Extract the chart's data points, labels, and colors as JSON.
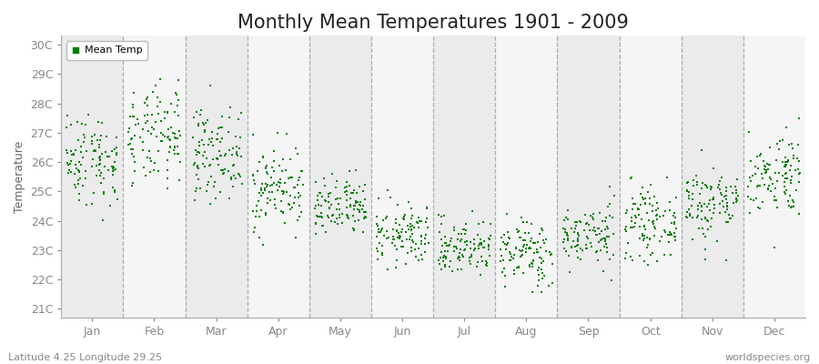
{
  "title": "Monthly Mean Temperatures 1901 - 2009",
  "ylabel": "Temperature",
  "xlabel_labels": [
    "Jan",
    "Feb",
    "Mar",
    "Apr",
    "May",
    "Jun",
    "Jul",
    "Aug",
    "Sep",
    "Oct",
    "Nov",
    "Dec"
  ],
  "ytick_labels": [
    "21C",
    "22C",
    "23C",
    "24C",
    "25C",
    "26C",
    "27C",
    "28C",
    "29C",
    "30C"
  ],
  "ytick_values": [
    21,
    22,
    23,
    24,
    25,
    26,
    27,
    28,
    29,
    30
  ],
  "ylim": [
    20.7,
    30.3
  ],
  "legend_label": "Mean Temp",
  "dot_color": "#008000",
  "bg_color_odd": "#ebebeb",
  "bg_color_even": "#f5f5f5",
  "footer_left": "Latitude 4.25 Longitude 29.25",
  "footer_right": "worldspecies.org",
  "title_fontsize": 15,
  "axis_fontsize": 9,
  "legend_fontsize": 8,
  "footer_fontsize": 8,
  "monthly_means": [
    26.1,
    26.8,
    26.3,
    25.1,
    24.4,
    23.5,
    23.1,
    22.9,
    23.5,
    23.9,
    24.6,
    25.6
  ],
  "monthly_stds": [
    0.8,
    0.85,
    0.75,
    0.72,
    0.52,
    0.52,
    0.48,
    0.58,
    0.52,
    0.58,
    0.65,
    0.72
  ],
  "n_years": 109,
  "seed": 42
}
